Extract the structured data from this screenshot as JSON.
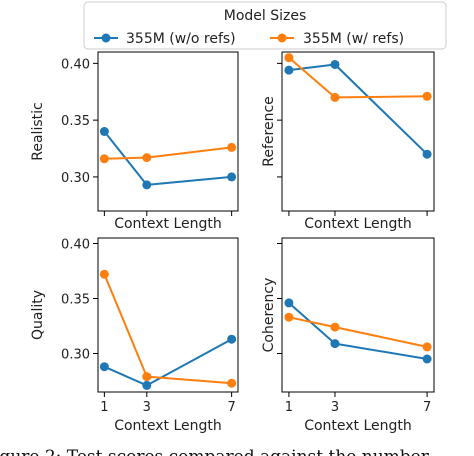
{
  "legend": {
    "title": "Model Sizes",
    "entries": [
      {
        "label": "355M (w/o refs)",
        "color": "#1f77b4"
      },
      {
        "label": "355M (w/ refs)",
        "color": "#ff7f0e"
      }
    ]
  },
  "caption": "igure 2: Test scores compared against the number",
  "chart_data": [
    {
      "type": "line",
      "ylabel": "Realistic",
      "xlabel": "Context Length",
      "x": [
        1,
        3,
        7
      ],
      "xticks": [],
      "ylim": [
        0.27,
        0.41
      ],
      "yticks": [
        "0.30",
        "0.35",
        "0.40"
      ],
      "series": [
        {
          "name": "355M (w/o refs)",
          "values": [
            0.34,
            0.293,
            0.3
          ]
        },
        {
          "name": "355M (w/ refs)",
          "values": [
            0.316,
            0.317,
            0.326
          ]
        }
      ]
    },
    {
      "type": "line",
      "ylabel": "Reference",
      "xlabel": "Context Length",
      "x": [
        1,
        3,
        7
      ],
      "xticks": [],
      "ylim": [
        0.27,
        0.41
      ],
      "yticks": [],
      "series": [
        {
          "name": "355M (w/o refs)",
          "values": [
            0.394,
            0.399,
            0.32
          ]
        },
        {
          "name": "355M (w/ refs)",
          "values": [
            0.405,
            0.37,
            0.371
          ]
        }
      ]
    },
    {
      "type": "line",
      "ylabel": "Quality",
      "xlabel": "Context Length",
      "x": [
        1,
        3,
        7
      ],
      "xticks": [
        "1",
        "3",
        "7"
      ],
      "ylim": [
        0.265,
        0.405
      ],
      "yticks": [
        "0.30",
        "0.35",
        "0.40"
      ],
      "series": [
        {
          "name": "355M (w/o refs)",
          "values": [
            0.288,
            0.271,
            0.313
          ]
        },
        {
          "name": "355M (w/ refs)",
          "values": [
            0.372,
            0.279,
            0.273
          ]
        }
      ]
    },
    {
      "type": "line",
      "ylabel": "Coherency",
      "xlabel": "Context Length",
      "x": [
        1,
        3,
        7
      ],
      "xticks": [
        "1",
        "3",
        "7"
      ],
      "ylim": [
        0.265,
        0.405
      ],
      "yticks": [],
      "series": [
        {
          "name": "355M (w/o refs)",
          "values": [
            0.346,
            0.309,
            0.295
          ]
        },
        {
          "name": "355M (w/ refs)",
          "values": [
            0.333,
            0.324,
            0.306
          ]
        }
      ]
    }
  ]
}
